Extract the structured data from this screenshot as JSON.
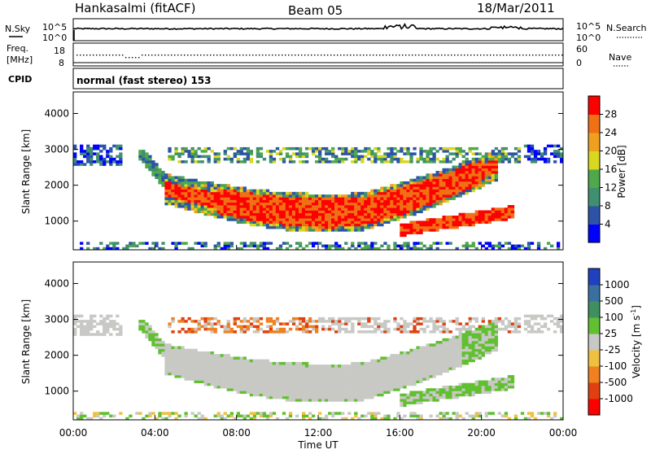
{
  "header": {
    "station": "Hankasalmi (fitACF)",
    "beam": "Beam 05",
    "date": "18/Mar/2011"
  },
  "top_strip": {
    "left_label_1": "N.Sky",
    "left_label_2": "Freq.",
    "left_label_2b": "[MHz]",
    "left_label_3": "CPID",
    "right_label_1": "N.Search",
    "right_label_2": "Nave",
    "ticks_left_upper": [
      "10^5",
      "10^0"
    ],
    "ticks_left_lower": [
      "18",
      "8"
    ],
    "ticks_right_upper": [
      "10^5",
      "10^0"
    ],
    "ticks_right_lower": [
      "60",
      "0"
    ],
    "cpid_text": "normal (fast stereo) 153"
  },
  "chart_data": [
    {
      "type": "heatmap",
      "name": "power-panel",
      "ylabel": "Slant Range [km]",
      "xlabel": "",
      "x_range_hours": [
        0,
        24
      ],
      "ylim": [
        200,
        4600
      ],
      "yticks": [
        1000,
        2000,
        3000,
        4000
      ],
      "colorbar": {
        "label": "Power [dB]",
        "ticks": [
          4,
          8,
          12,
          16,
          20,
          24,
          28
        ],
        "colors": [
          "#0000ff",
          "#2c53a8",
          "#3f8f70",
          "#4fa84a",
          "#d8d81e",
          "#f0a020",
          "#f07014",
          "#ff0000"
        ]
      },
      "regions": [
        {
          "desc": "early band",
          "x": [
            0.0,
            2.3
          ],
          "y": [
            2550,
            3150
          ],
          "level": "low"
        },
        {
          "desc": "upper band",
          "x": [
            4.6,
            22.0
          ],
          "y": [
            2600,
            3050
          ],
          "level": "mixed"
        },
        {
          "desc": "main arc",
          "x": [
            4.5,
            20.5
          ],
          "y": [
            1000,
            2400
          ],
          "level": "high"
        },
        {
          "desc": "lower arc",
          "x": [
            16.0,
            21.5
          ],
          "y": [
            600,
            1300
          ],
          "level": "high"
        },
        {
          "desc": "late band",
          "x": [
            22.0,
            24.0
          ],
          "y": [
            2600,
            3150
          ],
          "level": "low"
        }
      ]
    },
    {
      "type": "heatmap",
      "name": "velocity-panel",
      "ylabel": "Slant Range [km]",
      "xlabel": "Time UT",
      "x_range_hours": [
        0,
        24
      ],
      "xticks": [
        "00:00",
        "04:00",
        "08:00",
        "12:00",
        "16:00",
        "20:00",
        "00:00"
      ],
      "ylim": [
        200,
        4600
      ],
      "yticks": [
        1000,
        2000,
        3000,
        4000
      ],
      "colorbar": {
        "label": "Velocity [m s",
        "label_sup": "-1",
        "label_end": "]",
        "ticks": [
          "1000",
          "500",
          "100",
          "25",
          "-25",
          "-100",
          "-500",
          "-1000"
        ],
        "colors": [
          "#2040c0",
          "#3a70a0",
          "#3f9060",
          "#60c030",
          "#c8c8c4",
          "#f0c040",
          "#f08020",
          "#e04010",
          "#ff0000"
        ]
      }
    }
  ]
}
